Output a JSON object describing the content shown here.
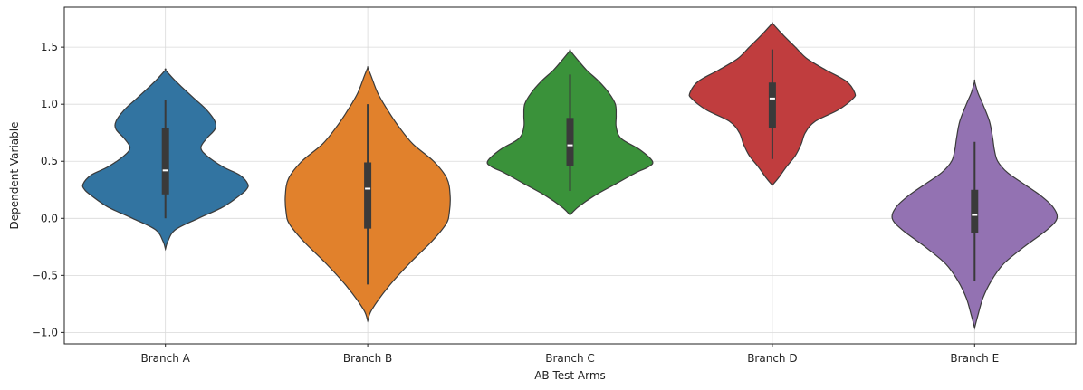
{
  "chart_data": {
    "type": "violin",
    "xlabel": "AB Test Arms",
    "ylabel": "Dependent Variable",
    "ylim": [
      -1.1,
      1.85
    ],
    "yticks": [
      -1.0,
      -0.5,
      0.0,
      0.5,
      1.0,
      1.5
    ],
    "ytick_labels": [
      "−1.0",
      "−0.5",
      "0.0",
      "0.5",
      "1.0",
      "1.5"
    ],
    "grid": true,
    "categories": [
      "Branch A",
      "Branch B",
      "Branch C",
      "Branch D",
      "Branch E"
    ],
    "series": [
      {
        "category": "Branch A",
        "color": "#3274a1",
        "median": 0.42,
        "q1": 0.21,
        "q3": 0.79,
        "whisker_low": 0.0,
        "whisker_high": 1.04,
        "density": [
          [
            -0.27,
            0.0
          ],
          [
            -0.2,
            0.03
          ],
          [
            -0.1,
            0.12
          ],
          [
            0.0,
            0.4
          ],
          [
            0.1,
            0.7
          ],
          [
            0.2,
            0.9
          ],
          [
            0.25,
            0.98
          ],
          [
            0.3,
            1.0
          ],
          [
            0.38,
            0.9
          ],
          [
            0.45,
            0.7
          ],
          [
            0.55,
            0.5
          ],
          [
            0.62,
            0.43
          ],
          [
            0.7,
            0.5
          ],
          [
            0.78,
            0.6
          ],
          [
            0.85,
            0.6
          ],
          [
            0.95,
            0.5
          ],
          [
            1.05,
            0.35
          ],
          [
            1.15,
            0.2
          ],
          [
            1.22,
            0.1
          ],
          [
            1.3,
            0.0
          ]
        ]
      },
      {
        "category": "Branch B",
        "color": "#e1812c",
        "median": 0.26,
        "q1": -0.09,
        "q3": 0.49,
        "whisker_low": -0.58,
        "whisker_high": 1.0,
        "density": [
          [
            -0.9,
            0.0
          ],
          [
            -0.8,
            0.05
          ],
          [
            -0.6,
            0.25
          ],
          [
            -0.4,
            0.5
          ],
          [
            -0.2,
            0.78
          ],
          [
            -0.05,
            0.95
          ],
          [
            0.05,
            0.99
          ],
          [
            0.2,
            1.0
          ],
          [
            0.35,
            0.96
          ],
          [
            0.5,
            0.8
          ],
          [
            0.65,
            0.55
          ],
          [
            0.8,
            0.38
          ],
          [
            0.95,
            0.24
          ],
          [
            1.1,
            0.12
          ],
          [
            1.25,
            0.04
          ],
          [
            1.32,
            0.0
          ]
        ]
      },
      {
        "category": "Branch C",
        "color": "#3a923a",
        "median": 0.64,
        "q1": 0.46,
        "q3": 0.88,
        "whisker_low": 0.24,
        "whisker_high": 1.26,
        "density": [
          [
            0.03,
            0.0
          ],
          [
            0.1,
            0.1
          ],
          [
            0.2,
            0.3
          ],
          [
            0.3,
            0.55
          ],
          [
            0.4,
            0.8
          ],
          [
            0.45,
            0.95
          ],
          [
            0.5,
            1.0
          ],
          [
            0.6,
            0.85
          ],
          [
            0.7,
            0.62
          ],
          [
            0.8,
            0.56
          ],
          [
            0.9,
            0.56
          ],
          [
            1.0,
            0.55
          ],
          [
            1.1,
            0.47
          ],
          [
            1.2,
            0.35
          ],
          [
            1.3,
            0.2
          ],
          [
            1.4,
            0.08
          ],
          [
            1.47,
            0.0
          ]
        ]
      },
      {
        "category": "Branch D",
        "color": "#c03d3e",
        "median": 1.05,
        "q1": 0.79,
        "q3": 1.19,
        "whisker_low": 0.52,
        "whisker_high": 1.48,
        "density": [
          [
            0.29,
            0.0
          ],
          [
            0.35,
            0.07
          ],
          [
            0.45,
            0.17
          ],
          [
            0.55,
            0.28
          ],
          [
            0.65,
            0.35
          ],
          [
            0.75,
            0.4
          ],
          [
            0.85,
            0.52
          ],
          [
            0.95,
            0.8
          ],
          [
            1.05,
            0.98
          ],
          [
            1.1,
            1.0
          ],
          [
            1.2,
            0.9
          ],
          [
            1.3,
            0.65
          ],
          [
            1.4,
            0.42
          ],
          [
            1.5,
            0.28
          ],
          [
            1.6,
            0.14
          ],
          [
            1.67,
            0.05
          ],
          [
            1.71,
            0.0
          ]
        ]
      },
      {
        "category": "Branch E",
        "color": "#9372b2",
        "median": 0.03,
        "q1": -0.13,
        "q3": 0.25,
        "whisker_low": -0.55,
        "whisker_high": 0.67,
        "density": [
          [
            -0.96,
            0.0
          ],
          [
            -0.85,
            0.04
          ],
          [
            -0.7,
            0.1
          ],
          [
            -0.55,
            0.2
          ],
          [
            -0.4,
            0.35
          ],
          [
            -0.25,
            0.6
          ],
          [
            -0.1,
            0.88
          ],
          [
            0.0,
            1.0
          ],
          [
            0.1,
            0.95
          ],
          [
            0.2,
            0.8
          ],
          [
            0.3,
            0.6
          ],
          [
            0.4,
            0.4
          ],
          [
            0.5,
            0.28
          ],
          [
            0.6,
            0.24
          ],
          [
            0.7,
            0.22
          ],
          [
            0.85,
            0.18
          ],
          [
            1.0,
            0.1
          ],
          [
            1.1,
            0.04
          ],
          [
            1.2,
            0.0
          ]
        ]
      }
    ]
  }
}
